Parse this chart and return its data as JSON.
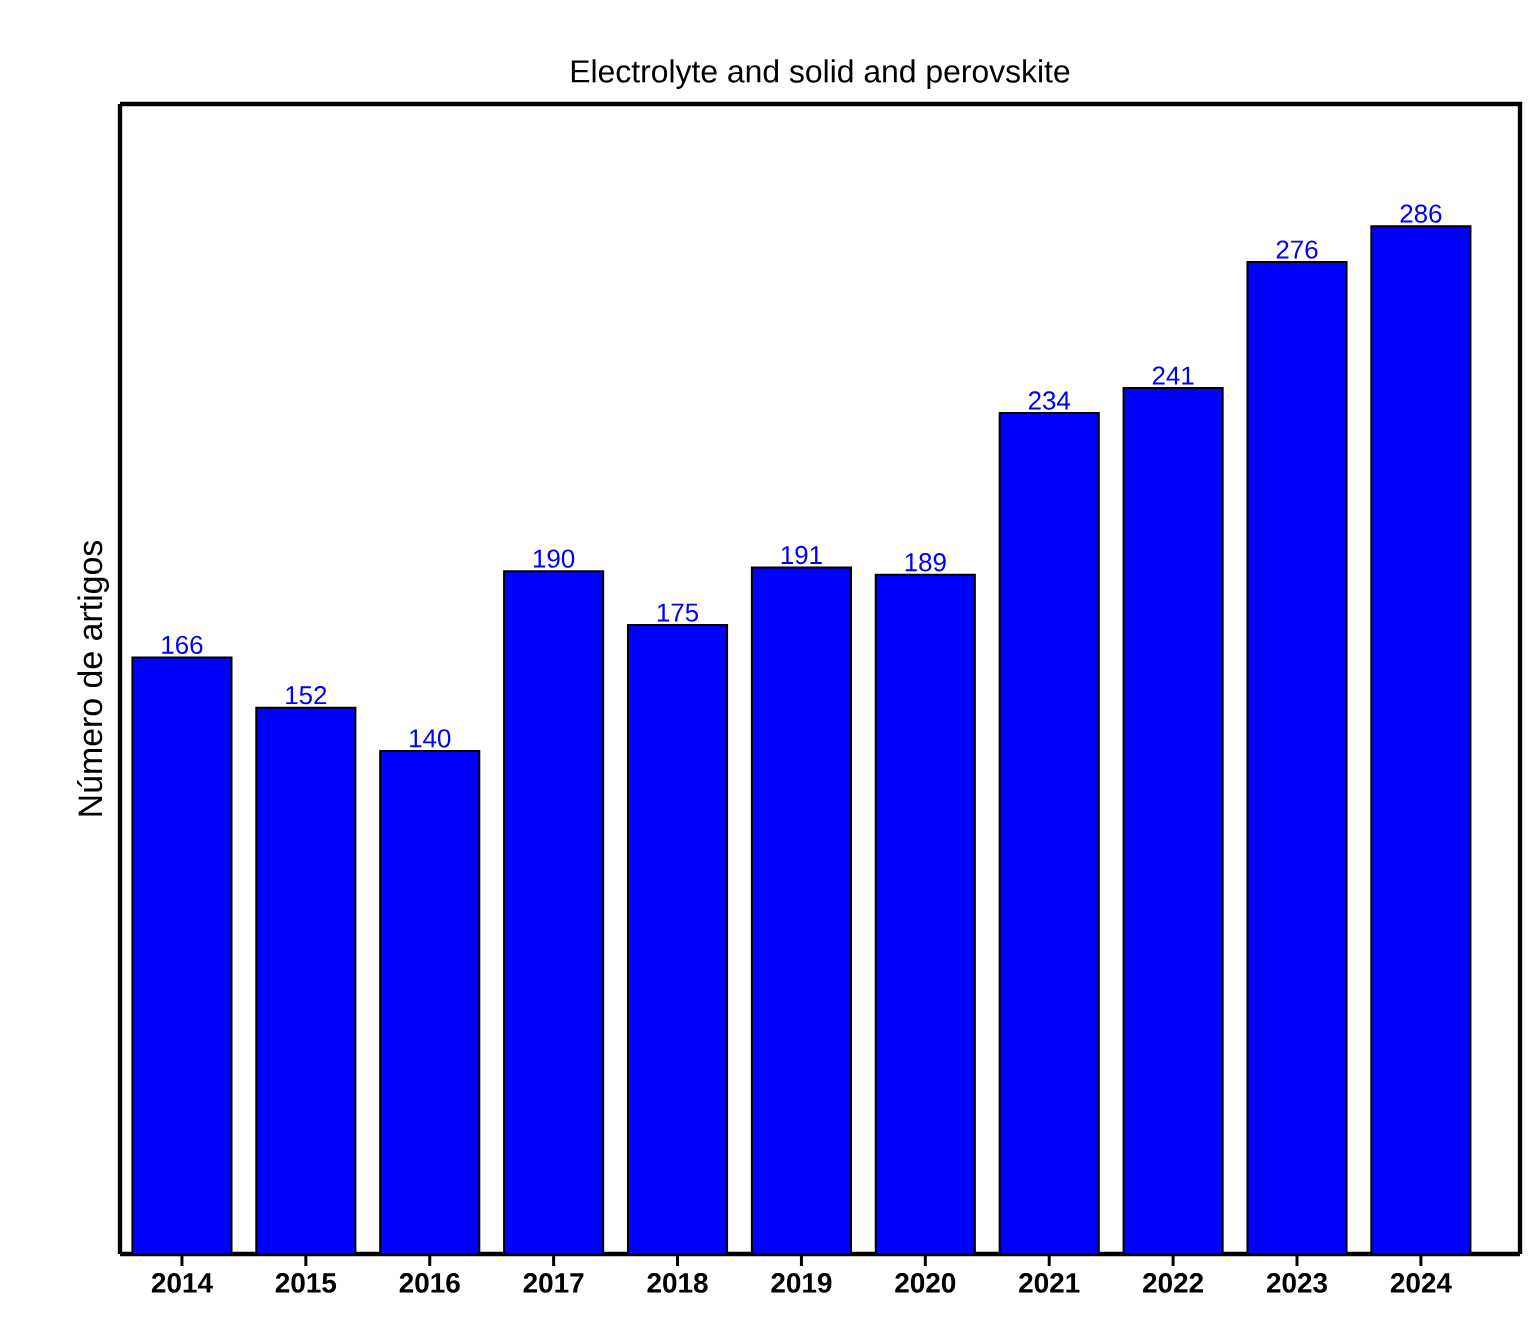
{
  "chart_data": {
    "type": "bar",
    "title": "Electrolyte and solid and perovskite",
    "ylabel": "Número de artigos",
    "categories": [
      "2014",
      "2015",
      "2016",
      "2017",
      "2018",
      "2019",
      "2020",
      "2021",
      "2022",
      "2023",
      "2024"
    ],
    "values": [
      166,
      152,
      140,
      190,
      175,
      191,
      189,
      234,
      241,
      276,
      286
    ],
    "color": "#0000ff",
    "ylim": [
      0,
      320
    ],
    "data_labels": true
  }
}
